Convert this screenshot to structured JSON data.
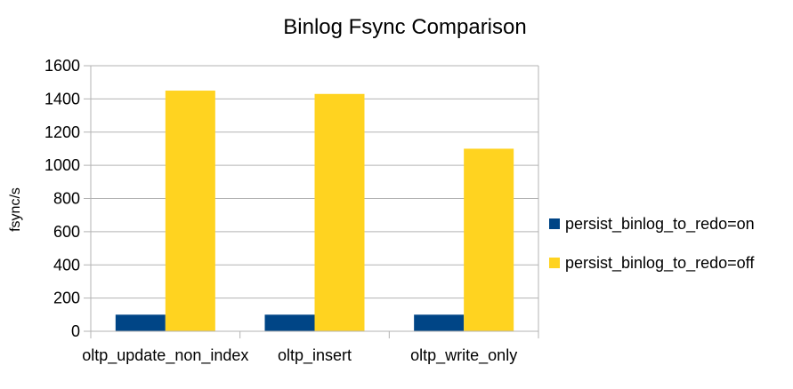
{
  "chart_data": {
    "type": "bar",
    "title": "Binlog Fsync Comparison",
    "xlabel": "",
    "ylabel": "fsync/s",
    "categories": [
      "oltp_update_non_index",
      "oltp_insert",
      "oltp_write_only"
    ],
    "series": [
      {
        "name": "persist_binlog_to_redo=on",
        "color": "#004586",
        "values": [
          100,
          100,
          100
        ]
      },
      {
        "name": "persist_binlog_to_redo=off",
        "color": "#ffd320",
        "values": [
          1450,
          1430,
          1100
        ]
      }
    ],
    "ylim": [
      0,
      1600
    ],
    "yticks": [
      0,
      200,
      400,
      600,
      800,
      1000,
      1200,
      1400,
      1600
    ],
    "grid": true,
    "legend": "right"
  }
}
